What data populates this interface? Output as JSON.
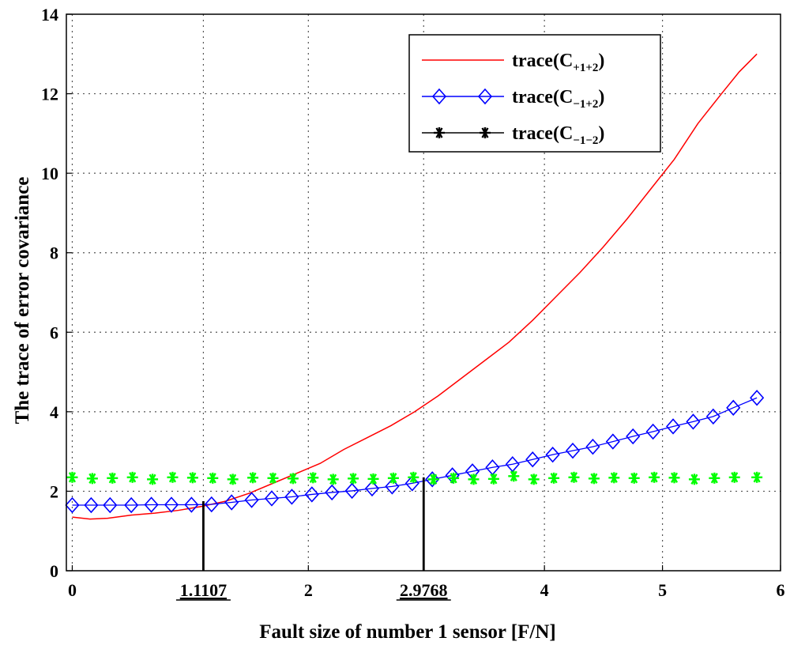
{
  "chart_data": {
    "type": "line",
    "title": "",
    "xlabel": "Fault size of number 1 sensor [F/N]",
    "ylabel": "The trace of error covariance",
    "xlim": [
      -0.05,
      6
    ],
    "ylim": [
      0,
      14
    ],
    "grid": true,
    "xticks": [
      0,
      2,
      4,
      5,
      6
    ],
    "xtick_labels": [
      "0",
      "2",
      "4",
      "5",
      "6"
    ],
    "yticks": [
      0,
      2,
      4,
      6,
      8,
      10,
      12,
      14
    ],
    "ytick_labels": [
      "0",
      "2",
      "4",
      "6",
      "8",
      "10",
      "12",
      "14"
    ],
    "legend_position": "top-right",
    "series": [
      {
        "name": "trace(C+1+2)",
        "legend_main": "trace(C",
        "legend_sub": "+1+2",
        "legend_close": ")",
        "color": "#ff0000",
        "marker": "none",
        "x": [
          0,
          0.15,
          0.3,
          0.5,
          0.7,
          0.9,
          1.1,
          1.3,
          1.5,
          1.7,
          1.9,
          2.1,
          2.3,
          2.5,
          2.7,
          2.9,
          3.1,
          3.3,
          3.5,
          3.7,
          3.9,
          4.1,
          4.3,
          4.5,
          4.7,
          4.9,
          5.1,
          5.3,
          5.5,
          5.65,
          5.8
        ],
        "y": [
          1.35,
          1.3,
          1.32,
          1.4,
          1.45,
          1.52,
          1.62,
          1.75,
          1.95,
          2.2,
          2.45,
          2.7,
          3.05,
          3.35,
          3.65,
          4.0,
          4.4,
          4.85,
          5.3,
          5.75,
          6.3,
          6.9,
          7.5,
          8.15,
          8.85,
          9.6,
          10.35,
          11.25,
          12.0,
          12.55,
          13.0
        ]
      },
      {
        "name": "trace(C-1+2)",
        "legend_main": "trace(C",
        "legend_sub": "−1+2",
        "legend_close": ")",
        "color": "#0000ff",
        "marker": "diamond",
        "x": [
          0,
          0.16,
          0.32,
          0.5,
          0.67,
          0.84,
          1.01,
          1.18,
          1.35,
          1.52,
          1.69,
          1.86,
          2.03,
          2.2,
          2.37,
          2.54,
          2.71,
          2.88,
          3.05,
          3.22,
          3.39,
          3.56,
          3.73,
          3.9,
          4.07,
          4.24,
          4.41,
          4.58,
          4.75,
          4.92,
          5.09,
          5.26,
          5.43,
          5.6,
          5.8
        ],
        "y": [
          1.65,
          1.65,
          1.65,
          1.65,
          1.66,
          1.66,
          1.66,
          1.67,
          1.72,
          1.78,
          1.82,
          1.86,
          1.92,
          1.97,
          2.01,
          2.07,
          2.12,
          2.2,
          2.3,
          2.4,
          2.5,
          2.6,
          2.68,
          2.8,
          2.92,
          3.02,
          3.12,
          3.25,
          3.38,
          3.5,
          3.63,
          3.75,
          3.88,
          4.1,
          4.35
        ]
      },
      {
        "name": "trace(C-1-2)",
        "legend_main": "trace(C",
        "legend_sub": "−1−2",
        "legend_close": ")",
        "color": "#00ff00",
        "legend_color": "#000000",
        "marker": "star",
        "x": [
          0,
          0.17,
          0.34,
          0.51,
          0.68,
          0.85,
          1.02,
          1.19,
          1.36,
          1.53,
          1.7,
          1.87,
          2.04,
          2.21,
          2.38,
          2.55,
          2.72,
          2.89,
          3.06,
          3.23,
          3.4,
          3.57,
          3.74,
          3.91,
          4.08,
          4.25,
          4.42,
          4.59,
          4.76,
          4.93,
          5.1,
          5.27,
          5.44,
          5.61,
          5.8
        ],
        "y": [
          2.35,
          2.32,
          2.33,
          2.35,
          2.3,
          2.35,
          2.34,
          2.33,
          2.3,
          2.34,
          2.33,
          2.32,
          2.34,
          2.3,
          2.32,
          2.31,
          2.33,
          2.35,
          2.3,
          2.33,
          2.3,
          2.31,
          2.38,
          2.3,
          2.33,
          2.35,
          2.32,
          2.34,
          2.33,
          2.35,
          2.34,
          2.3,
          2.33,
          2.35,
          2.35
        ]
      }
    ],
    "annotations": [
      {
        "x": 1.1107,
        "label": "1.1107",
        "line_top_y": 1.75
      },
      {
        "x": 2.9768,
        "label": "2.9768",
        "line_top_y": 2.35
      }
    ]
  }
}
